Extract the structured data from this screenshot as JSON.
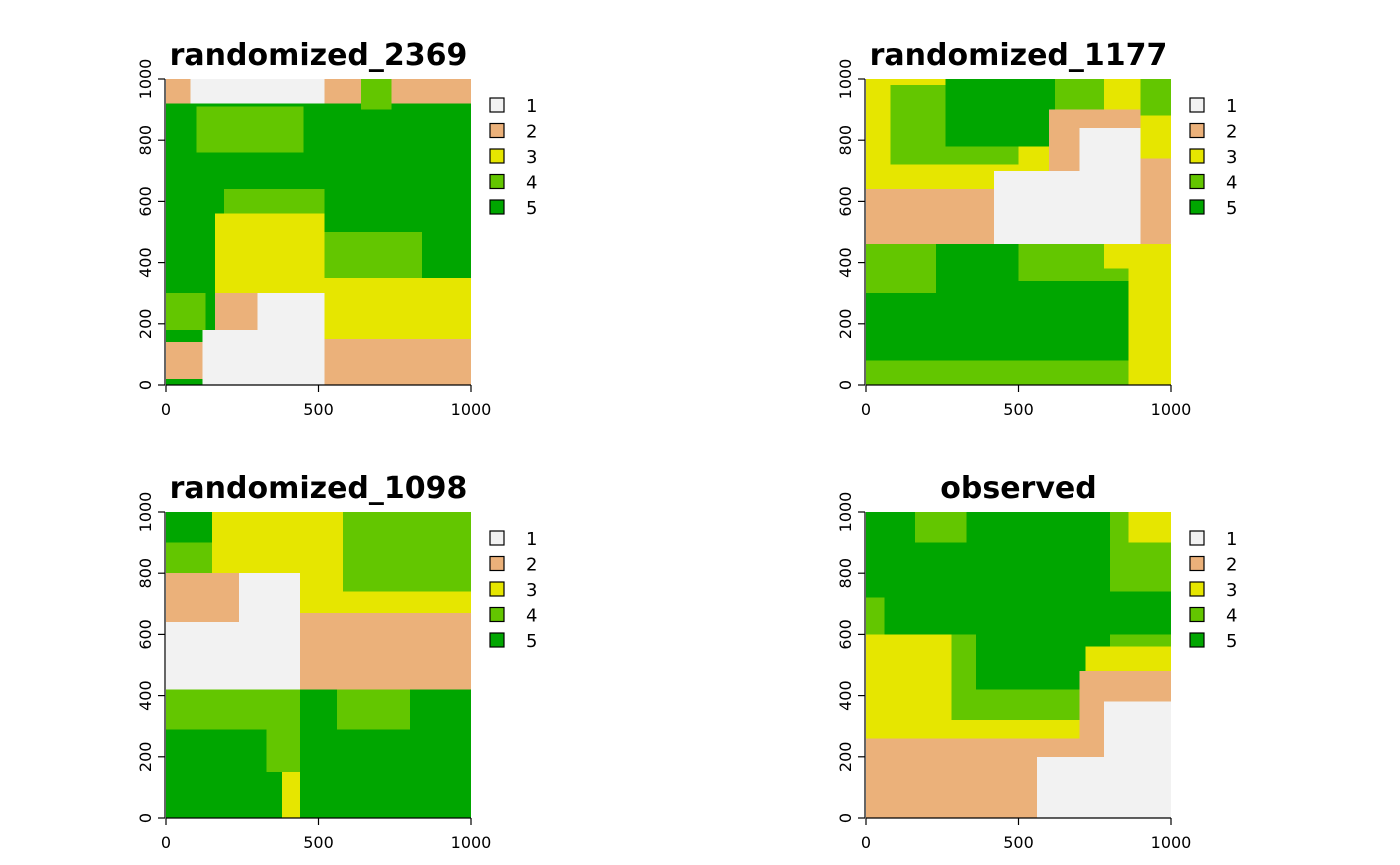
{
  "chart_data": [
    {
      "type": "heatmap",
      "title": "randomized_2369",
      "xlabel": "",
      "ylabel": "",
      "xlim": [
        0,
        1000
      ],
      "ylim": [
        0,
        1000
      ],
      "x_ticks": [
        "0",
        "500",
        "1000"
      ],
      "y_ticks": [
        "0",
        "200",
        "400",
        "600",
        "800",
        "1000"
      ],
      "grid": false,
      "legend_position": "right",
      "legend": [
        "1",
        "2",
        "3",
        "4",
        "5"
      ],
      "colors": [
        "#f2f2f2",
        "#ebb17a",
        "#e6e600",
        "#63c600",
        "#00a600"
      ],
      "regions": [
        {
          "class": 5,
          "x": [
            0,
            1000
          ],
          "y": [
            0,
            1000
          ]
        },
        {
          "class": 1,
          "x": [
            80,
            520
          ],
          "y": [
            920,
            1000
          ]
        },
        {
          "class": 2,
          "x": [
            0,
            80
          ],
          "y": [
            920,
            1000
          ]
        },
        {
          "class": 2,
          "x": [
            520,
            1000
          ],
          "y": [
            920,
            1000
          ]
        },
        {
          "class": 4,
          "x": [
            100,
            450
          ],
          "y": [
            760,
            910
          ]
        },
        {
          "class": 4,
          "x": [
            190,
            520
          ],
          "y": [
            460,
            640
          ]
        },
        {
          "class": 4,
          "x": [
            0,
            130
          ],
          "y": [
            180,
            300
          ]
        },
        {
          "class": 3,
          "x": [
            160,
            520
          ],
          "y": [
            300,
            560
          ]
        },
        {
          "class": 2,
          "x": [
            160,
            520
          ],
          "y": [
            120,
            300
          ]
        },
        {
          "class": 2,
          "x": [
            0,
            200
          ],
          "y": [
            20,
            140
          ]
        },
        {
          "class": 1,
          "x": [
            120,
            520
          ],
          "y": [
            0,
            180
          ]
        },
        {
          "class": 1,
          "x": [
            300,
            520
          ],
          "y": [
            180,
            300
          ]
        },
        {
          "class": 4,
          "x": [
            520,
            840
          ],
          "y": [
            350,
            500
          ]
        },
        {
          "class": 4,
          "x": [
            640,
            740
          ],
          "y": [
            900,
            1000
          ]
        },
        {
          "class": 3,
          "x": [
            520,
            1000
          ],
          "y": [
            150,
            350
          ]
        },
        {
          "class": 2,
          "x": [
            520,
            1000
          ],
          "y": [
            0,
            150
          ]
        }
      ]
    },
    {
      "type": "heatmap",
      "title": "randomized_1177",
      "xlabel": "",
      "ylabel": "",
      "xlim": [
        0,
        1000
      ],
      "ylim": [
        0,
        1000
      ],
      "x_ticks": [
        "0",
        "500",
        "1000"
      ],
      "y_ticks": [
        "0",
        "200",
        "400",
        "600",
        "800",
        "1000"
      ],
      "grid": false,
      "legend_position": "right",
      "legend": [
        "1",
        "2",
        "3",
        "4",
        "5"
      ],
      "colors": [
        "#f2f2f2",
        "#ebb17a",
        "#e6e600",
        "#63c600",
        "#00a600"
      ],
      "regions": [
        {
          "class": 5,
          "x": [
            0,
            1000
          ],
          "y": [
            0,
            1000
          ]
        },
        {
          "class": 3,
          "x": [
            0,
            900
          ],
          "y": [
            460,
            1000
          ]
        },
        {
          "class": 4,
          "x": [
            80,
            500
          ],
          "y": [
            720,
            980
          ]
        },
        {
          "class": 5,
          "x": [
            260,
            620
          ],
          "y": [
            780,
            1000
          ]
        },
        {
          "class": 4,
          "x": [
            620,
            780
          ],
          "y": [
            860,
            1000
          ]
        },
        {
          "class": 2,
          "x": [
            0,
            900
          ],
          "y": [
            460,
            640
          ]
        },
        {
          "class": 2,
          "x": [
            600,
            900
          ],
          "y": [
            640,
            900
          ]
        },
        {
          "class": 1,
          "x": [
            420,
            900
          ],
          "y": [
            460,
            700
          ]
        },
        {
          "class": 1,
          "x": [
            700,
            900
          ],
          "y": [
            700,
            840
          ]
        },
        {
          "class": 3,
          "x": [
            900,
            1000
          ],
          "y": [
            460,
            1000
          ]
        },
        {
          "class": 4,
          "x": [
            900,
            1000
          ],
          "y": [
            880,
            1000
          ]
        },
        {
          "class": 2,
          "x": [
            900,
            1000
          ],
          "y": [
            460,
            740
          ]
        },
        {
          "class": 4,
          "x": [
            0,
            230
          ],
          "y": [
            300,
            460
          ]
        },
        {
          "class": 4,
          "x": [
            500,
            900
          ],
          "y": [
            340,
            460
          ]
        },
        {
          "class": 3,
          "x": [
            780,
            900
          ],
          "y": [
            380,
            460
          ]
        },
        {
          "class": 4,
          "x": [
            0,
            900
          ],
          "y": [
            0,
            80
          ]
        },
        {
          "class": 3,
          "x": [
            860,
            1000
          ],
          "y": [
            0,
            460
          ]
        }
      ]
    },
    {
      "type": "heatmap",
      "title": "randomized_1098",
      "xlabel": "",
      "ylabel": "",
      "xlim": [
        0,
        1000
      ],
      "ylim": [
        0,
        1000
      ],
      "x_ticks": [
        "0",
        "500",
        "1000"
      ],
      "y_ticks": [
        "0",
        "200",
        "400",
        "600",
        "800",
        "1000"
      ],
      "grid": false,
      "legend_position": "right",
      "legend": [
        "1",
        "2",
        "3",
        "4",
        "5"
      ],
      "colors": [
        "#f2f2f2",
        "#ebb17a",
        "#e6e600",
        "#63c600",
        "#00a600"
      ],
      "regions": [
        {
          "class": 5,
          "x": [
            0,
            1000
          ],
          "y": [
            0,
            1000
          ]
        },
        {
          "class": 4,
          "x": [
            0,
            440
          ],
          "y": [
            700,
            1000
          ]
        },
        {
          "class": 5,
          "x": [
            0,
            200
          ],
          "y": [
            900,
            1000
          ]
        },
        {
          "class": 3,
          "x": [
            150,
            440
          ],
          "y": [
            780,
            1000
          ]
        },
        {
          "class": 2,
          "x": [
            0,
            440
          ],
          "y": [
            420,
            800
          ]
        },
        {
          "class": 1,
          "x": [
            0,
            440
          ],
          "y": [
            420,
            640
          ]
        },
        {
          "class": 1,
          "x": [
            240,
            440
          ],
          "y": [
            640,
            800
          ]
        },
        {
          "class": 3,
          "x": [
            440,
            1000
          ],
          "y": [
            660,
            1000
          ]
        },
        {
          "class": 4,
          "x": [
            580,
            1000
          ],
          "y": [
            740,
            1000
          ]
        },
        {
          "class": 2,
          "x": [
            440,
            1000
          ],
          "y": [
            420,
            670
          ]
        },
        {
          "class": 4,
          "x": [
            0,
            440
          ],
          "y": [
            290,
            420
          ]
        },
        {
          "class": 3,
          "x": [
            380,
            440
          ],
          "y": [
            0,
            150
          ]
        },
        {
          "class": 4,
          "x": [
            330,
            440
          ],
          "y": [
            150,
            300
          ]
        },
        {
          "class": 4,
          "x": [
            560,
            800
          ],
          "y": [
            290,
            420
          ]
        }
      ]
    },
    {
      "type": "heatmap",
      "title": "observed",
      "xlabel": "",
      "ylabel": "",
      "xlim": [
        0,
        1000
      ],
      "ylim": [
        0,
        1000
      ],
      "x_ticks": [
        "0",
        "500",
        "1000"
      ],
      "y_ticks": [
        "0",
        "200",
        "400",
        "600",
        "800",
        "1000"
      ],
      "grid": false,
      "legend_position": "right",
      "legend": [
        "1",
        "2",
        "3",
        "4",
        "5"
      ],
      "colors": [
        "#f2f2f2",
        "#ebb17a",
        "#e6e600",
        "#63c600",
        "#00a600"
      ],
      "regions": [
        {
          "class": 5,
          "x": [
            0,
            1000
          ],
          "y": [
            0,
            1000
          ]
        },
        {
          "class": 4,
          "x": [
            160,
            330
          ],
          "y": [
            900,
            1000
          ]
        },
        {
          "class": 4,
          "x": [
            800,
            1000
          ],
          "y": [
            740,
            1000
          ]
        },
        {
          "class": 3,
          "x": [
            860,
            1000
          ],
          "y": [
            900,
            1000
          ]
        },
        {
          "class": 4,
          "x": [
            0,
            60
          ],
          "y": [
            580,
            720
          ]
        },
        {
          "class": 4,
          "x": [
            0,
            1000
          ],
          "y": [
            300,
            600
          ]
        },
        {
          "class": 5,
          "x": [
            360,
            800
          ],
          "y": [
            420,
            720
          ]
        },
        {
          "class": 3,
          "x": [
            0,
            280
          ],
          "y": [
            200,
            600
          ]
        },
        {
          "class": 3,
          "x": [
            280,
            720
          ],
          "y": [
            160,
            320
          ]
        },
        {
          "class": 3,
          "x": [
            720,
            1000
          ],
          "y": [
            360,
            560
          ]
        },
        {
          "class": 2,
          "x": [
            0,
            1000
          ],
          "y": [
            0,
            260
          ]
        },
        {
          "class": 2,
          "x": [
            700,
            1000
          ],
          "y": [
            260,
            480
          ]
        },
        {
          "class": 1,
          "x": [
            560,
            1000
          ],
          "y": [
            0,
            200
          ]
        },
        {
          "class": 1,
          "x": [
            780,
            1000
          ],
          "y": [
            200,
            380
          ]
        }
      ]
    }
  ]
}
